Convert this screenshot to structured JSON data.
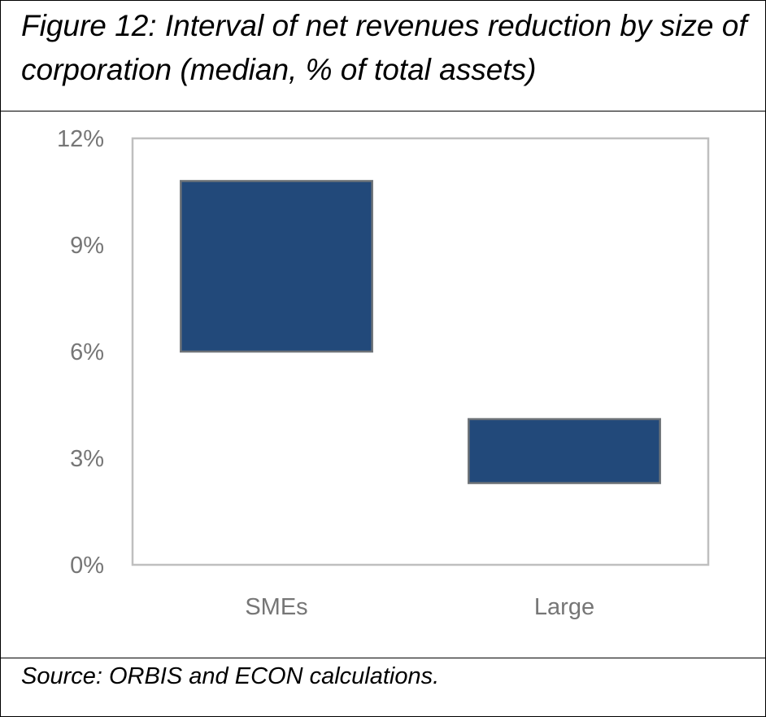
{
  "figure": {
    "title": "Figure 12: Interval of net revenues reduction by size of corporation (median, % of total assets)",
    "source": "Source: ORBIS and ECON calculations."
  },
  "chart_data": {
    "type": "bar",
    "subtype": "floating-range",
    "title": "Figure 12: Interval of net revenues reduction by size of corporation (median, % of total assets)",
    "xlabel": "",
    "ylabel": "",
    "categories": [
      "SMEs",
      "Large"
    ],
    "series": [
      {
        "ranges": [
          [
            6.0,
            10.8
          ],
          [
            2.3,
            4.1
          ]
        ]
      }
    ],
    "ylim": [
      0,
      12
    ],
    "yticks": [
      "0%",
      "3%",
      "6%",
      "9%",
      "12%"
    ],
    "ytick_values": [
      0,
      3,
      6,
      9,
      12
    ],
    "grid": false,
    "legend": "none",
    "colors": {
      "bar_fill": "#22497A",
      "bar_stroke": "#6E7378",
      "axis": "#BFBFBF",
      "tick_text": "#767676"
    }
  }
}
